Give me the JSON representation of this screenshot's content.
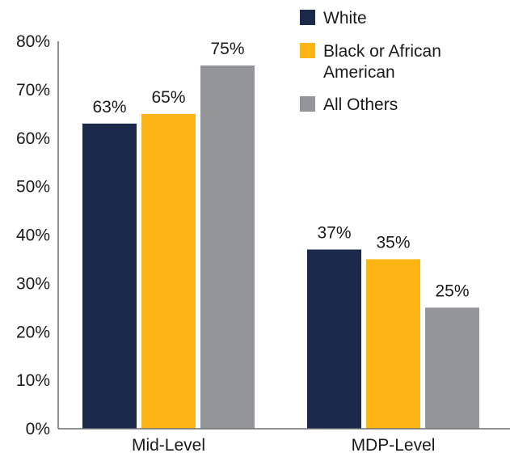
{
  "chart_data": {
    "type": "bar",
    "categories": [
      "Mid-Level",
      "MDP-Level"
    ],
    "series": [
      {
        "name": "White",
        "color": "#1b2a4a",
        "values": [
          63,
          37
        ],
        "labels": [
          "63%",
          "37%"
        ]
      },
      {
        "name": "Black or African American",
        "color": "#fdb515",
        "values": [
          65,
          35
        ],
        "labels": [
          "65%",
          "35%"
        ]
      },
      {
        "name": "All Others",
        "color": "#939598",
        "values": [
          75,
          25
        ],
        "labels": [
          "75%",
          "25%"
        ]
      }
    ],
    "ylim": [
      0,
      80
    ],
    "yticks": [
      0,
      10,
      20,
      30,
      40,
      50,
      60,
      70,
      80
    ],
    "ytick_labels": [
      "0%",
      "10%",
      "20%",
      "30%",
      "40%",
      "50%",
      "60%",
      "70%",
      "80%"
    ],
    "grid": false,
    "legend": {
      "position": "top-right",
      "entries": [
        {
          "lines": [
            "White"
          ]
        },
        {
          "lines": [
            "Black or African",
            "American"
          ]
        },
        {
          "lines": [
            "All Others"
          ]
        }
      ]
    },
    "axis_color": "#6d6e71"
  }
}
